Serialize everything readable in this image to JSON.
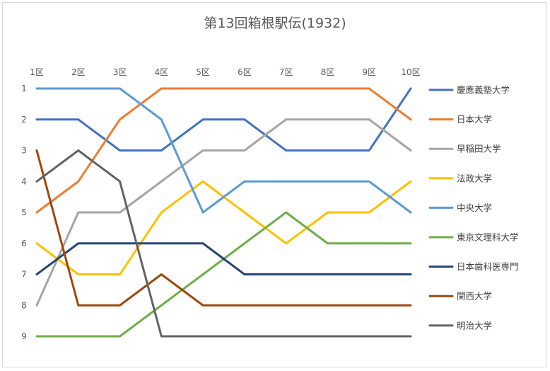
{
  "chart_data": {
    "type": "line",
    "title": "第13回箱根駅伝(1932)",
    "xlabel": "",
    "ylabel": "",
    "categories": [
      "1区",
      "2区",
      "3区",
      "4区",
      "5区",
      "6区",
      "7区",
      "8区",
      "9区",
      "10区"
    ],
    "y_ticks": [
      "1",
      "2",
      "3",
      "4",
      "5",
      "6",
      "7",
      "8",
      "9"
    ],
    "ylim": [
      1,
      9
    ],
    "y_reversed": true,
    "grid": false,
    "legend_position": "right",
    "series": [
      {
        "name": "慶應義塾大学",
        "color": "#4472C4",
        "values": [
          2,
          2,
          3,
          3,
          2,
          2,
          3,
          3,
          3,
          1
        ]
      },
      {
        "name": "日本大学",
        "color": "#ED7D31",
        "values": [
          5,
          4,
          2,
          1,
          1,
          1,
          1,
          1,
          1,
          2
        ]
      },
      {
        "name": "早稲田大学",
        "color": "#A5A5A5",
        "values": [
          8,
          5,
          5,
          4,
          3,
          3,
          2,
          2,
          2,
          3
        ]
      },
      {
        "name": "法政大学",
        "color": "#FFC000",
        "values": [
          6,
          7,
          7,
          5,
          4,
          5,
          6,
          5,
          5,
          4
        ]
      },
      {
        "name": "中央大学",
        "color": "#5B9BD5",
        "values": [
          1,
          1,
          1,
          2,
          5,
          4,
          4,
          4,
          4,
          5
        ]
      },
      {
        "name": "東京文理科大学",
        "color": "#70AD47",
        "values": [
          9,
          9,
          9,
          8,
          7,
          6,
          5,
          6,
          6,
          6
        ]
      },
      {
        "name": "日本歯科医専門",
        "color": "#264478",
        "values": [
          7,
          6,
          6,
          6,
          6,
          7,
          7,
          7,
          7,
          7
        ]
      },
      {
        "name": "関西大学",
        "color": "#9E480E",
        "values": [
          3,
          8,
          8,
          7,
          8,
          8,
          8,
          8,
          8,
          8
        ]
      },
      {
        "name": "明治大学",
        "color": "#636363",
        "values": [
          4,
          3,
          4,
          9,
          9,
          9,
          9,
          9,
          9,
          9
        ]
      }
    ]
  }
}
